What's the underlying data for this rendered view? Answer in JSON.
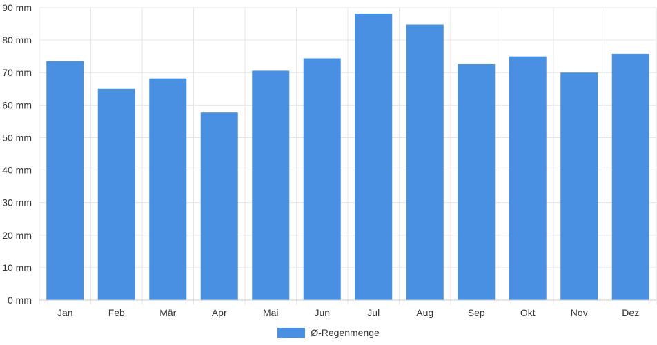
{
  "chart_data": {
    "type": "bar",
    "categories": [
      "Jan",
      "Feb",
      "Mär",
      "Apr",
      "Mai",
      "Jun",
      "Jul",
      "Aug",
      "Sep",
      "Okt",
      "Nov",
      "Dez"
    ],
    "series": [
      {
        "name": "Ø-Regenmenge",
        "values": [
          73.5,
          65,
          68.2,
          57.7,
          70.6,
          74.4,
          88.1,
          84.8,
          72.6,
          75,
          70,
          75.8
        ]
      }
    ],
    "y_tick_labels": [
      "0 mm",
      "10 mm",
      "20 mm",
      "30 mm",
      "40 mm",
      "50 mm",
      "60 mm",
      "70 mm",
      "80 mm",
      "90 mm"
    ],
    "ylim": [
      0,
      90
    ],
    "ytick_step": 10,
    "grid": true,
    "legend_position": "bottom",
    "bar_color": "#4a90e2",
    "grid_color": "#e6e6e6",
    "axis_color": "#cccccc"
  }
}
